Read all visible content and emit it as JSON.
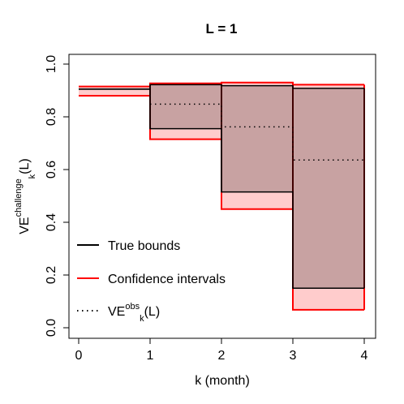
{
  "chart_data": {
    "type": "line",
    "title": "L =  1",
    "xlabel": "k (month)",
    "ylabel": {
      "base": "VE",
      "subscript": "k",
      "superscript": "challenge",
      "suffix": "(L)"
    },
    "xlim": [
      0,
      4
    ],
    "ylim": [
      0,
      1
    ],
    "x_ticks": [
      "0",
      "1",
      "2",
      "3",
      "4"
    ],
    "y_ticks": [
      "0.0",
      "0.2",
      "0.4",
      "0.6",
      "0.8",
      "1.0"
    ],
    "x_tick_values": [
      0,
      1,
      2,
      3,
      4
    ],
    "y_tick_values": [
      0,
      0.2,
      0.4,
      0.6,
      0.8,
      1.0
    ],
    "step_intervals": [
      [
        0,
        1
      ],
      [
        1,
        2
      ],
      [
        2,
        3
      ],
      [
        3,
        4
      ]
    ],
    "true_bounds": {
      "upper": [
        0.905,
        0.922,
        0.918,
        0.908
      ],
      "lower": [
        0.905,
        0.755,
        0.515,
        0.15
      ]
    },
    "confidence_intervals": {
      "upper": [
        0.915,
        0.927,
        0.93,
        0.922
      ],
      "lower": [
        0.88,
        0.715,
        0.45,
        0.068
      ]
    },
    "observed": [
      null,
      0.848,
      0.762,
      0.636
    ],
    "legend": {
      "position": "bottom-left",
      "entries": [
        {
          "label": "True bounds",
          "color": "#000000",
          "style": "solid"
        },
        {
          "label": "Confidence intervals",
          "color": "#ff0000",
          "style": "solid"
        },
        {
          "label_base": "VE",
          "label_sub": "k",
          "label_sup": "obs",
          "label_suffix": "(L)",
          "color": "#000000",
          "style": "dotted"
        }
      ]
    },
    "colors": {
      "ci_fill": "#ffcccc",
      "true_fill": "#c8a2a2",
      "ci_line": "#ff0000",
      "true_line": "#000000"
    }
  }
}
